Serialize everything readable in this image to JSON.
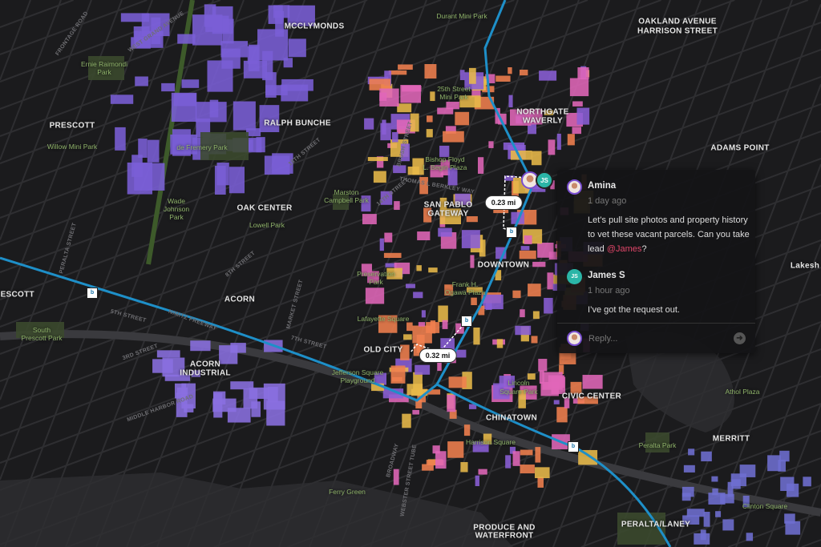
{
  "map": {
    "neighborhoods": [
      "MCCLYMONDS",
      "OAKLAND AVENUE",
      "HARRISON STREET",
      "NORTHGATE",
      "WAVERLY",
      "RALPH BUNCHE",
      "PRESCOTT",
      "ADAMS POINT",
      "SAN PABLO",
      "GATEWAY",
      "OAK CENTER",
      "DOWNTOWN",
      "RESCOTT",
      "ACORN",
      "OLD CITY",
      "ACORN",
      "INDUSTRIAL",
      "CIVIC CENTER",
      "CHINATOWN",
      "MERRITT",
      "PRODUCE AND",
      "WATERFRONT",
      "PERALTA/LANEY",
      "Lakesh"
    ],
    "parks": [
      "Durant Mini Park",
      "Ernie Raimondi",
      "Park",
      "25th Street",
      "Mini Park",
      "Willow Mini Park",
      "de Fremery Park",
      "Bishop Floyd",
      "L. Begin Plaza",
      "Marston",
      "Campbell Park",
      "Wade",
      "Johnson",
      "Park",
      "Lowell Park",
      "Preservation",
      "Park",
      "Frank H.",
      "Ogawa Plaza",
      "Lafayette Square",
      "South",
      "Prescott Park",
      "Jefferson Square",
      "Playground",
      "Lincoln",
      "Square Park",
      "Athol Plaza",
      "Harrison Square",
      "Peralta Park",
      "Ferry Green",
      "Clinton Square"
    ],
    "streets": [
      "FRONTAGE ROAD",
      "WEST GRAND AVENUE",
      "PERALTA STREET",
      "NIMITZ FREEWAY",
      "5TH STREET",
      "7TH STREET",
      "MARKET STREET",
      "BROADWAY",
      "14TH STREET",
      "18TH STREET",
      "8TH STREET",
      "3RD STREET",
      "MIDDLE HARBOR ROAD",
      "WEBSTER STREET TUBE",
      "THOMAS L BERKLEY WAY",
      "BRUSH STREET"
    ],
    "distances": [
      "0.23 mi",
      "0.32 mi"
    ],
    "transit_icon": "bart-station-icon",
    "colors": {
      "background": "#1b1b1d",
      "transit_line": "#1e8fc8",
      "parcel_pink": "#e066b8",
      "parcel_orange": "#f07f4f",
      "parcel_yellow": "#e8b94a",
      "parcel_purple": "#8a5fd6",
      "park": "#3b4a2e"
    }
  },
  "thread": {
    "participants": [
      "Amina",
      "JS"
    ],
    "comments": [
      {
        "author": "Amina",
        "time": "1 day ago",
        "text_before": "Let’s pull site photos and property history to vet these vacant parcels. Can you take lead ",
        "mention": "@James",
        "text_after": "?"
      },
      {
        "author": "James S",
        "initials": "JS",
        "time": "1 hour ago",
        "text": "I’ve got the request out."
      }
    ],
    "reply_placeholder": "Reply...",
    "send_icon": "arrow-right-icon"
  }
}
